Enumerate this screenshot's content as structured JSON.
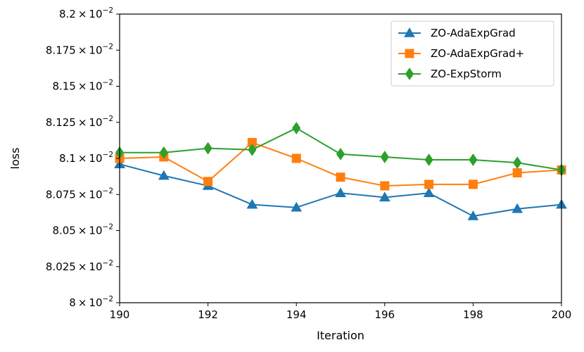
{
  "chart_data": {
    "type": "line",
    "xlabel": "Iteration",
    "ylabel": "loss",
    "xlim": [
      190,
      200
    ],
    "ylim": [
      0.08,
      0.082
    ],
    "xticks": [
      190,
      192,
      194,
      196,
      198,
      200
    ],
    "xtick_labels": [
      "190",
      "192",
      "194",
      "196",
      "198",
      "200"
    ],
    "yticks": [
      0.08,
      0.08025,
      0.0805,
      0.08075,
      0.081,
      0.08125,
      0.0815,
      0.08175,
      0.082
    ],
    "ytick_mantissas": [
      "8",
      "8.025",
      "8.05",
      "8.075",
      "8.1",
      "8.125",
      "8.15",
      "8.175",
      "8.2"
    ],
    "ytick_times": "×",
    "ytick_base": "10",
    "ytick_exponent": "−2",
    "x": [
      190,
      191,
      192,
      193,
      194,
      195,
      196,
      197,
      198,
      199,
      200
    ],
    "series": [
      {
        "name": "ZO-AdaExpGrad",
        "color": "#1f77b4",
        "marker": "triangle",
        "values": [
          0.08096,
          0.08088,
          0.08081,
          0.08068,
          0.08066,
          0.08076,
          0.08073,
          0.08076,
          0.0806,
          0.08065,
          0.08068
        ]
      },
      {
        "name": "ZO-AdaExpGrad+",
        "color": "#ff7f0e",
        "marker": "square",
        "values": [
          0.081,
          0.08101,
          0.08084,
          0.08111,
          0.081,
          0.08087,
          0.08081,
          0.08082,
          0.08082,
          0.0809,
          0.08092
        ]
      },
      {
        "name": "ZO-ExpStorm",
        "color": "#2ca02c",
        "marker": "diamond",
        "values": [
          0.08104,
          0.08104,
          0.08107,
          0.08106,
          0.08121,
          0.08103,
          0.08101,
          0.08099,
          0.08099,
          0.08097,
          0.08092
        ]
      }
    ],
    "legend_position": "top-right",
    "grid": false
  }
}
